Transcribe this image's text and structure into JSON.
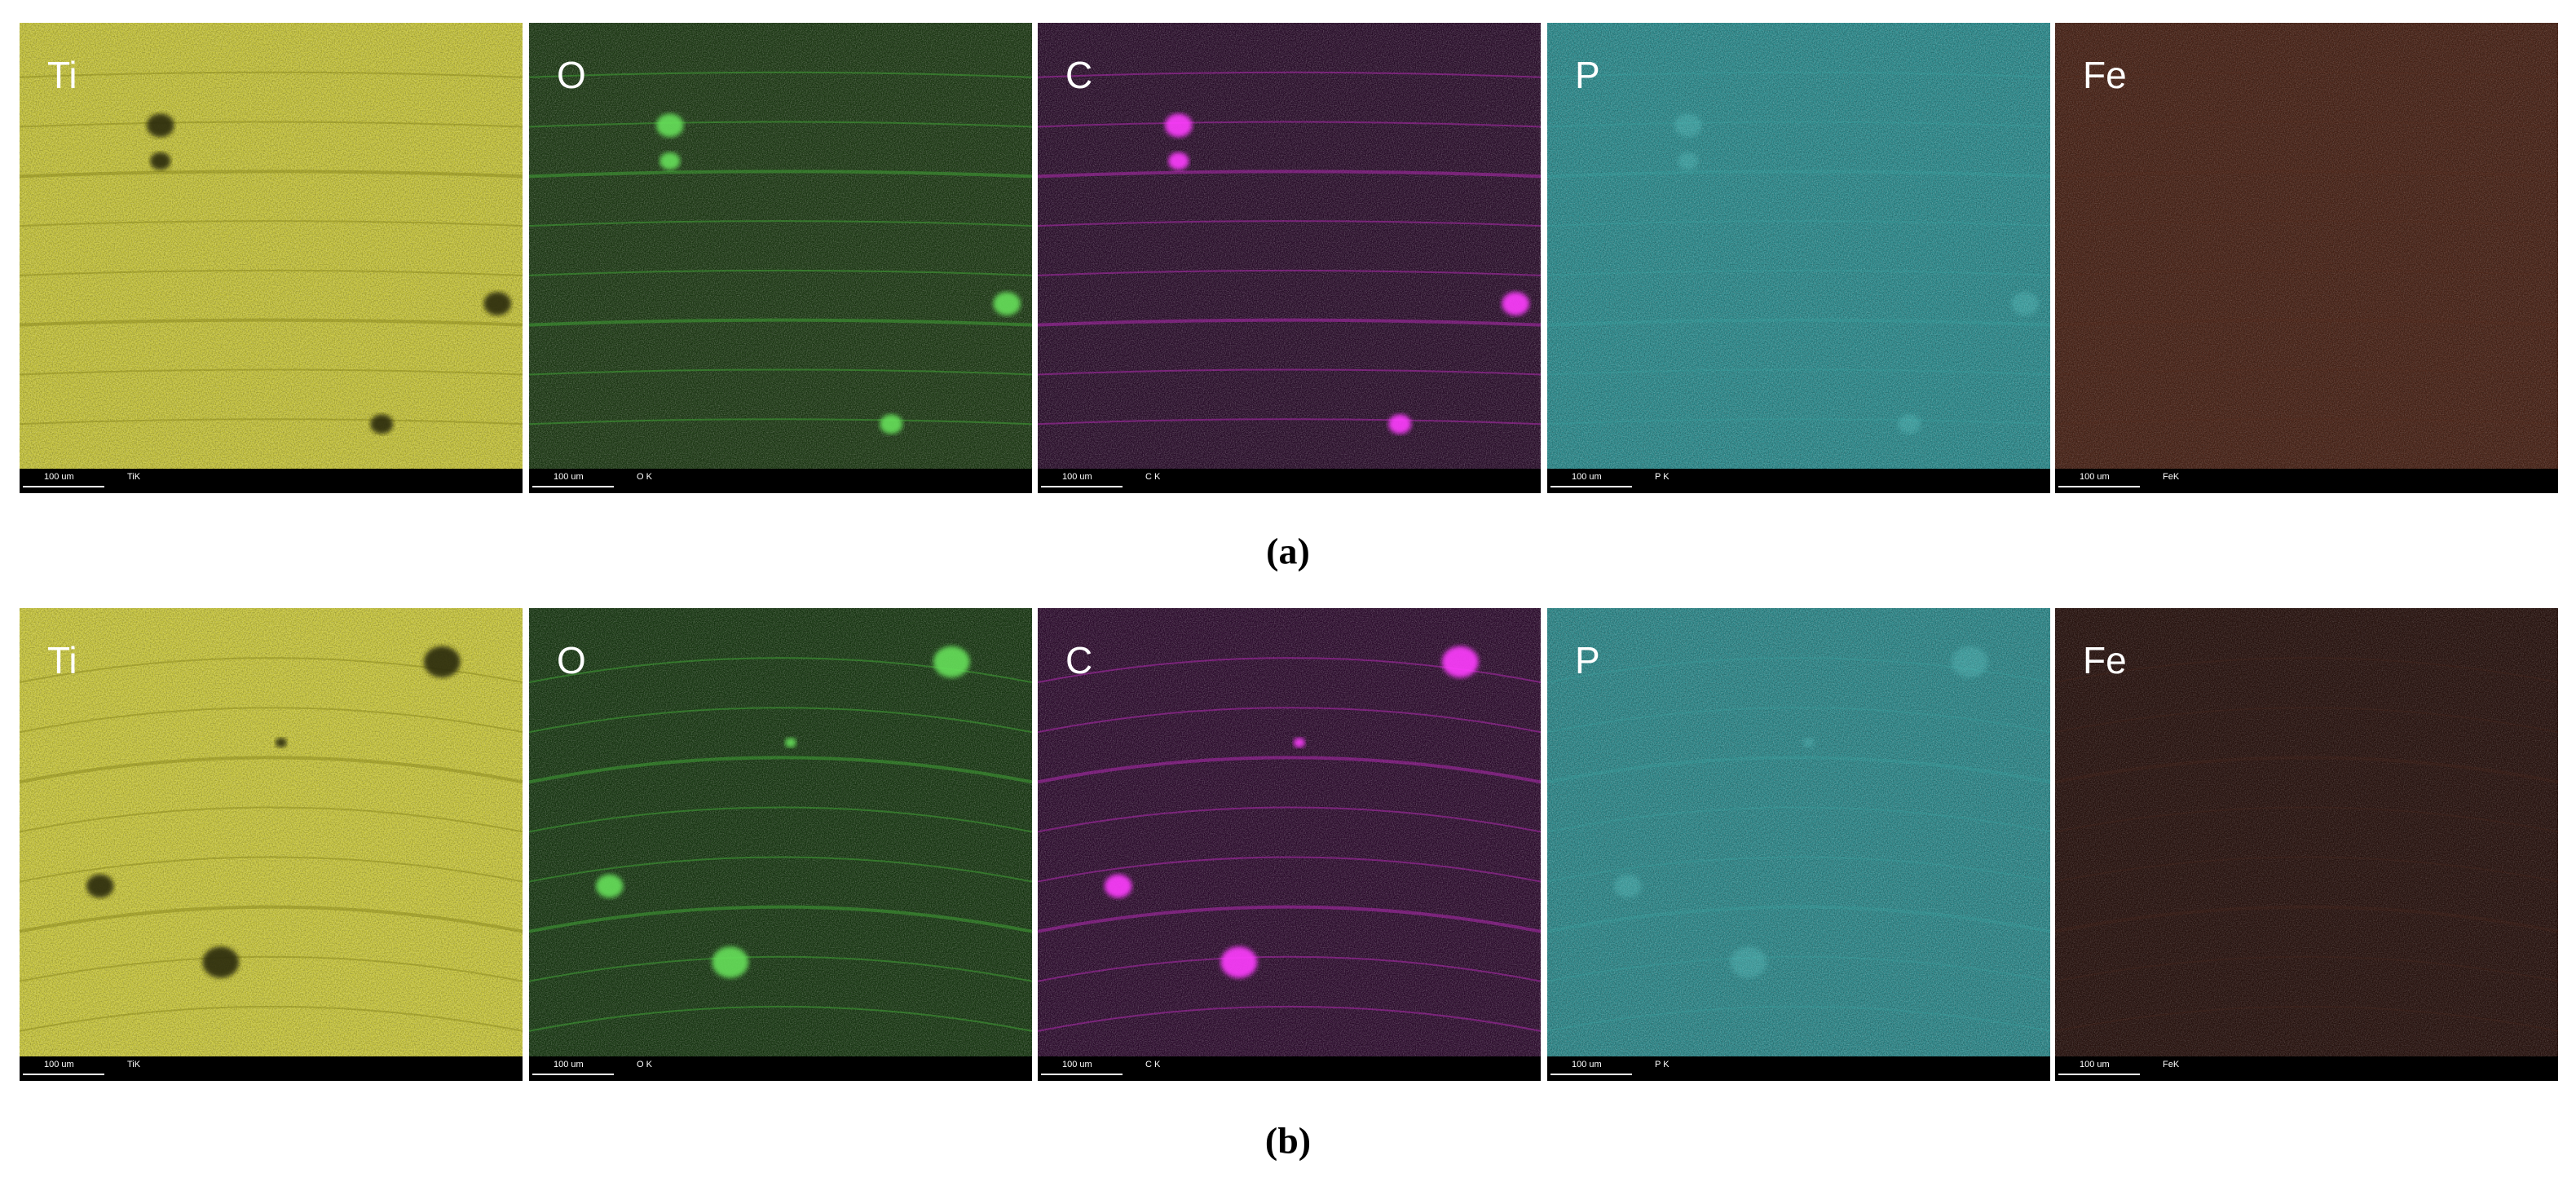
{
  "rows": [
    {
      "label": "(a)",
      "panels": [
        {
          "element": "Ti",
          "scale_bar": "100 um",
          "line": "TiK"
        },
        {
          "element": "O",
          "scale_bar": "100 um",
          "line": "O K"
        },
        {
          "element": "C",
          "scale_bar": "100 um",
          "line": "C K"
        },
        {
          "element": "P",
          "scale_bar": "100 um",
          "line": "P K"
        },
        {
          "element": "Fe",
          "scale_bar": "100 um",
          "line": "FeK"
        }
      ]
    },
    {
      "label": "(b)",
      "panels": [
        {
          "element": "Ti",
          "scale_bar": "100 um",
          "line": "TiK"
        },
        {
          "element": "O",
          "scale_bar": "100 um",
          "line": "O K"
        },
        {
          "element": "C",
          "scale_bar": "100 um",
          "line": "C K"
        },
        {
          "element": "P",
          "scale_bar": "100 um",
          "line": "P K"
        },
        {
          "element": "Fe",
          "scale_bar": "100 um",
          "line": "FeK"
        }
      ]
    }
  ]
}
